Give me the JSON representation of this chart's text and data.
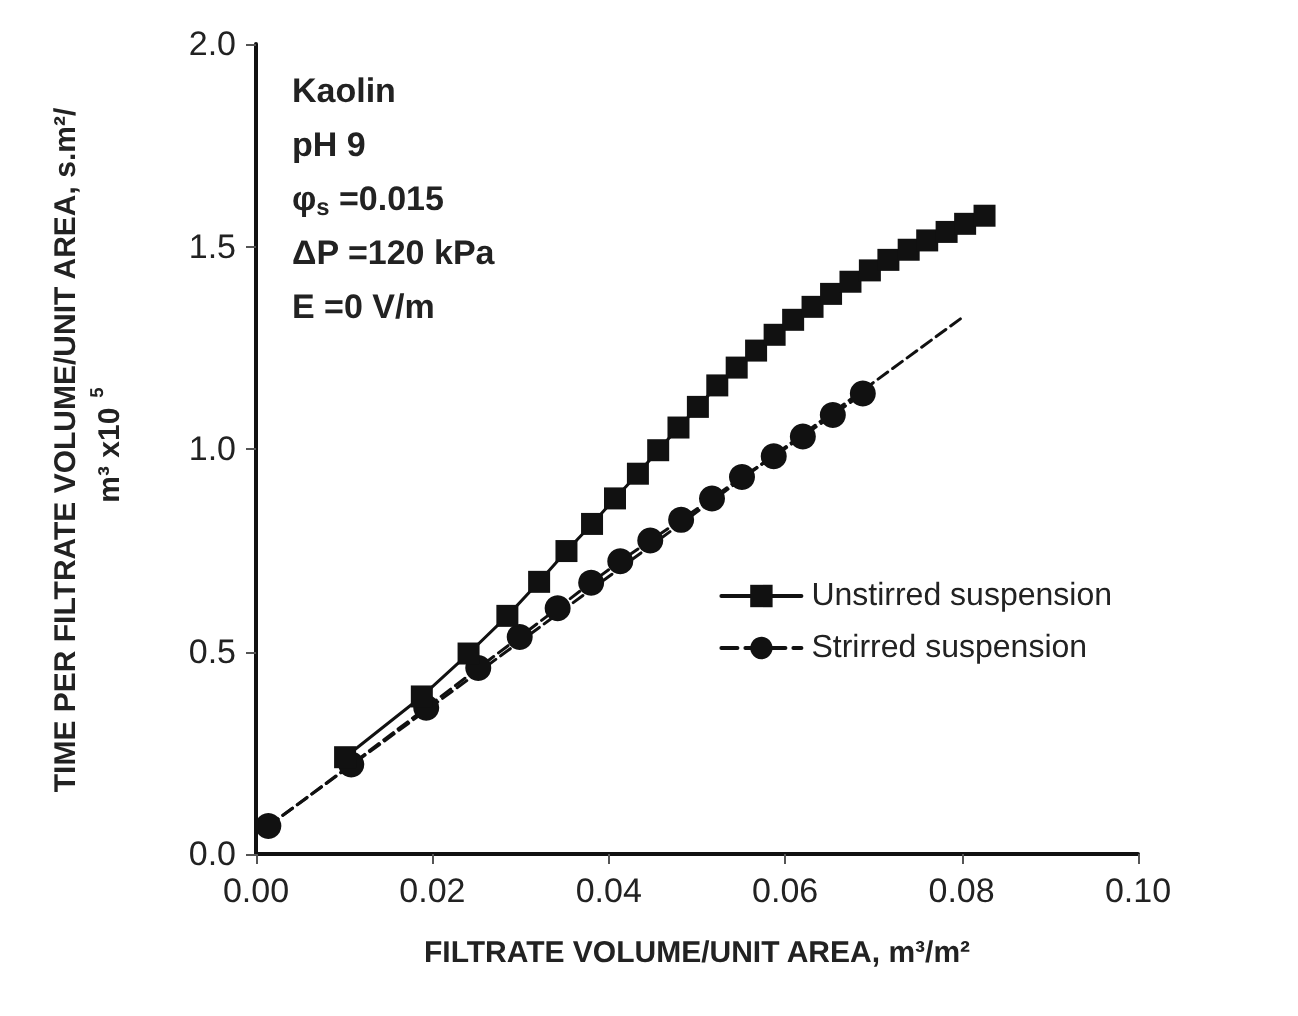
{
  "chart_data": {
    "type": "line",
    "xlabel": "FILTRATE VOLUME/UNIT AREA, m³/m²",
    "ylabel": "TIME PER FILTRATE VOLUME/UNIT AREA, s.m²/m³ x10$^{5}$",
    "annotations": [
      "Kaolin",
      "pH 9",
      "φ$_{s}$ =0.015",
      "ΔP =120 kPa",
      "E =0 V/m"
    ],
    "xlim": [
      0,
      0.1
    ],
    "xticks": [
      {
        "value": 0,
        "label": "0.00"
      },
      {
        "value": 0.02,
        "label": "0.02"
      },
      {
        "value": 0.04,
        "label": "0.04"
      },
      {
        "value": 0.06,
        "label": "0.06"
      },
      {
        "value": 0.08,
        "label": "0.08"
      },
      {
        "value": 0.1,
        "label": "0.10"
      }
    ],
    "ylim": [
      0,
      2
    ],
    "yticks": [
      {
        "value": 0,
        "label": "0.0"
      },
      {
        "value": 0.5,
        "label": "0.5"
      },
      {
        "value": 1,
        "label": "1.0"
      },
      {
        "value": 1.5,
        "label": "1.5"
      },
      {
        "value": 2,
        "label": "2.0"
      }
    ],
    "grid": false,
    "legend": "right",
    "series": [
      {
        "name": "Unstirred suspension",
        "color": "#111111",
        "marker": "square",
        "line_style": "solid",
        "x": [
          0.0101,
          0.0188,
          0.0241,
          0.0285,
          0.0321,
          0.0352,
          0.0381,
          0.0407,
          0.0433,
          0.0456,
          0.0479,
          0.0501,
          0.0523,
          0.0545,
          0.0567,
          0.0588,
          0.0609,
          0.0631,
          0.0652,
          0.0674,
          0.0696,
          0.0717,
          0.074,
          0.0761,
          0.0783,
          0.0804,
          0.0826
        ],
        "values": [
          0.239,
          0.389,
          0.495,
          0.588,
          0.672,
          0.748,
          0.815,
          0.878,
          0.939,
          0.997,
          1.053,
          1.104,
          1.157,
          1.201,
          1.243,
          1.282,
          1.319,
          1.351,
          1.383,
          1.413,
          1.441,
          1.467,
          1.492,
          1.515,
          1.536,
          1.556,
          1.576
        ]
      },
      {
        "name": "Strirred suspension",
        "color": "#111111",
        "marker": "circle",
        "line_style": "dashed",
        "x": [
          0.0014,
          0.0108,
          0.0193,
          0.0252,
          0.0299,
          0.0342,
          0.038,
          0.0413,
          0.0447,
          0.0482,
          0.0517,
          0.0551,
          0.0587,
          0.062,
          0.0654,
          0.0688
        ],
        "values": [
          0.069,
          0.221,
          0.361,
          0.459,
          0.536,
          0.607,
          0.67,
          0.723,
          0.774,
          0.825,
          0.878,
          0.931,
          0.982,
          1.031,
          1.084,
          1.137
        ]
      },
      {
        "color": "#111111",
        "marker": "none",
        "line_style": "dashed",
        "x": [
          0.0014,
          0.0804
        ],
        "values": [
          0.069,
          1.33
        ]
      }
    ]
  }
}
